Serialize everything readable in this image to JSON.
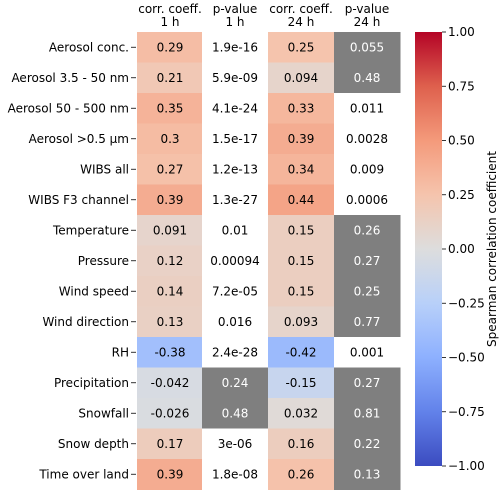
{
  "chart_data": {
    "type": "heatmap",
    "title": "",
    "columns": [
      "corr. coeff.\n1 h",
      "p-value\n1 h",
      "corr. coeff.\n24 h",
      "p-value\n24 h"
    ],
    "rows": [
      "Aerosol conc.",
      "Aerosol 3.5 - 50 nm",
      "Aerosol 50 - 500 nm",
      "Aerosol >0.5 µm",
      "WIBS all",
      "WIBS F3 channel",
      "Temperature",
      "Pressure",
      "Wind speed",
      "Wind direction",
      "RH",
      "Precipitation",
      "Snowfall",
      "Snow depth",
      "Time over land"
    ],
    "values": [
      [
        "0.29",
        "1.9e-16",
        "0.25",
        "0.055"
      ],
      [
        "0.21",
        "5.9e-09",
        "0.094",
        "0.48"
      ],
      [
        "0.35",
        "4.1e-24",
        "0.33",
        "0.011"
      ],
      [
        "0.3",
        "1.5e-17",
        "0.39",
        "0.0028"
      ],
      [
        "0.27",
        "1.2e-13",
        "0.34",
        "0.009"
      ],
      [
        "0.39",
        "1.3e-27",
        "0.44",
        "0.0006"
      ],
      [
        "0.091",
        "0.01",
        "0.15",
        "0.26"
      ],
      [
        "0.12",
        "0.00094",
        "0.15",
        "0.27"
      ],
      [
        "0.14",
        "7.2e-05",
        "0.15",
        "0.25"
      ],
      [
        "0.13",
        "0.016",
        "0.093",
        "0.77"
      ],
      [
        "-0.38",
        "2.4e-28",
        "-0.42",
        "0.001"
      ],
      [
        "-0.042",
        "0.24",
        "-0.15",
        "0.27"
      ],
      [
        "-0.026",
        "0.48",
        "0.032",
        "0.81"
      ],
      [
        "0.17",
        "3e-06",
        "0.16",
        "0.22"
      ],
      [
        "0.39",
        "1.8e-08",
        "0.26",
        "0.13"
      ]
    ],
    "colorbar": {
      "label": "Spearman correlation coefficient",
      "range": [
        -1,
        1
      ],
      "ticks": [
        "1.00",
        "0.75",
        "0.50",
        "0.25",
        "0.00",
        "−0.25",
        "−0.50",
        "−0.75",
        "−1.00"
      ],
      "tick_values": [
        1,
        0.75,
        0.5,
        0.25,
        0,
        -0.25,
        -0.5,
        -0.75,
        -1
      ],
      "colormap": "coolwarm"
    },
    "significance_threshold": 0.05,
    "nonsignificant_color": "#7f7f7f"
  }
}
